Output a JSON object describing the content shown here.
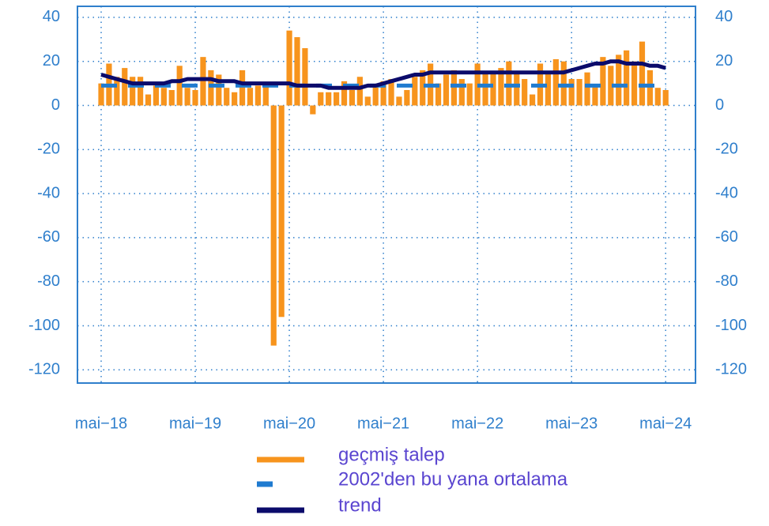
{
  "chart_data": {
    "type": "bar",
    "categories": [
      "mai−18",
      null,
      null,
      null,
      null,
      null,
      null,
      null,
      null,
      null,
      null,
      null,
      "mai−19",
      null,
      null,
      null,
      null,
      null,
      null,
      null,
      null,
      null,
      null,
      null,
      "mai−20",
      null,
      null,
      null,
      null,
      null,
      null,
      null,
      null,
      null,
      null,
      null,
      "mai−21",
      null,
      null,
      null,
      null,
      null,
      null,
      null,
      null,
      null,
      null,
      null,
      "mai−22",
      null,
      null,
      null,
      null,
      null,
      null,
      null,
      null,
      null,
      null,
      null,
      "mai−23",
      null,
      null,
      null,
      null,
      null,
      null,
      null,
      null,
      null,
      null,
      null,
      "mai−24"
    ],
    "series": [
      {
        "name": "geçmiş talep",
        "color": "#f7941d",
        "kind": "bar",
        "values": [
          10,
          19,
          13,
          17,
          13,
          13,
          5,
          9,
          8,
          7,
          18,
          8,
          7,
          22,
          16,
          14,
          8,
          6,
          16,
          8,
          9,
          9,
          -109,
          -96,
          34,
          31,
          26,
          -4,
          6,
          6,
          6,
          11,
          7,
          13,
          4,
          9,
          11,
          12,
          4,
          7,
          13,
          16,
          19,
          10,
          14,
          16,
          12,
          10,
          19,
          15,
          15,
          17,
          20,
          15,
          12,
          5,
          19,
          15,
          21,
          20,
          12,
          12,
          15,
          9,
          22,
          18,
          23,
          25,
          20,
          29,
          16,
          8,
          7
        ]
      },
      {
        "name": "2002'den bu yana ortalama",
        "color": "#1f7bd0",
        "kind": "dash",
        "values": [
          9,
          9,
          9,
          9,
          9,
          9,
          9,
          9,
          9,
          9,
          9,
          9,
          9,
          9,
          9,
          9,
          9,
          9,
          9,
          9,
          9,
          9,
          9,
          9,
          9,
          9,
          9,
          9,
          9,
          9,
          9,
          9,
          9,
          9,
          9,
          9,
          9,
          9,
          9,
          9,
          9,
          9,
          9,
          9,
          9,
          9,
          9,
          9,
          9,
          9,
          9,
          9,
          9,
          9,
          9,
          9,
          9,
          9,
          9,
          9,
          9,
          9,
          9,
          9,
          9,
          9,
          9,
          9,
          9,
          9,
          9,
          9,
          9
        ]
      },
      {
        "name": "trend",
        "color": "#0b0b6b",
        "kind": "line",
        "values": [
          14,
          13,
          12,
          11,
          10,
          10,
          10,
          10,
          10,
          11,
          11,
          12,
          12,
          12,
          12,
          11,
          11,
          11,
          10,
          10,
          10,
          10,
          10,
          10,
          10,
          9,
          9,
          9,
          9,
          8,
          8,
          8,
          8,
          8,
          9,
          9,
          10,
          11,
          12,
          13,
          14,
          14,
          15,
          15,
          15,
          15,
          15,
          15,
          15,
          15,
          15,
          15,
          15,
          15,
          15,
          15,
          15,
          15,
          15,
          15,
          16,
          17,
          18,
          19,
          19,
          20,
          20,
          19,
          19,
          19,
          18,
          18,
          17
        ]
      }
    ],
    "ylim": [
      -126,
      45
    ],
    "yticks": [
      40,
      20,
      0,
      -20,
      -40,
      -60,
      -80,
      -100,
      -120
    ],
    "grid": true
  }
}
